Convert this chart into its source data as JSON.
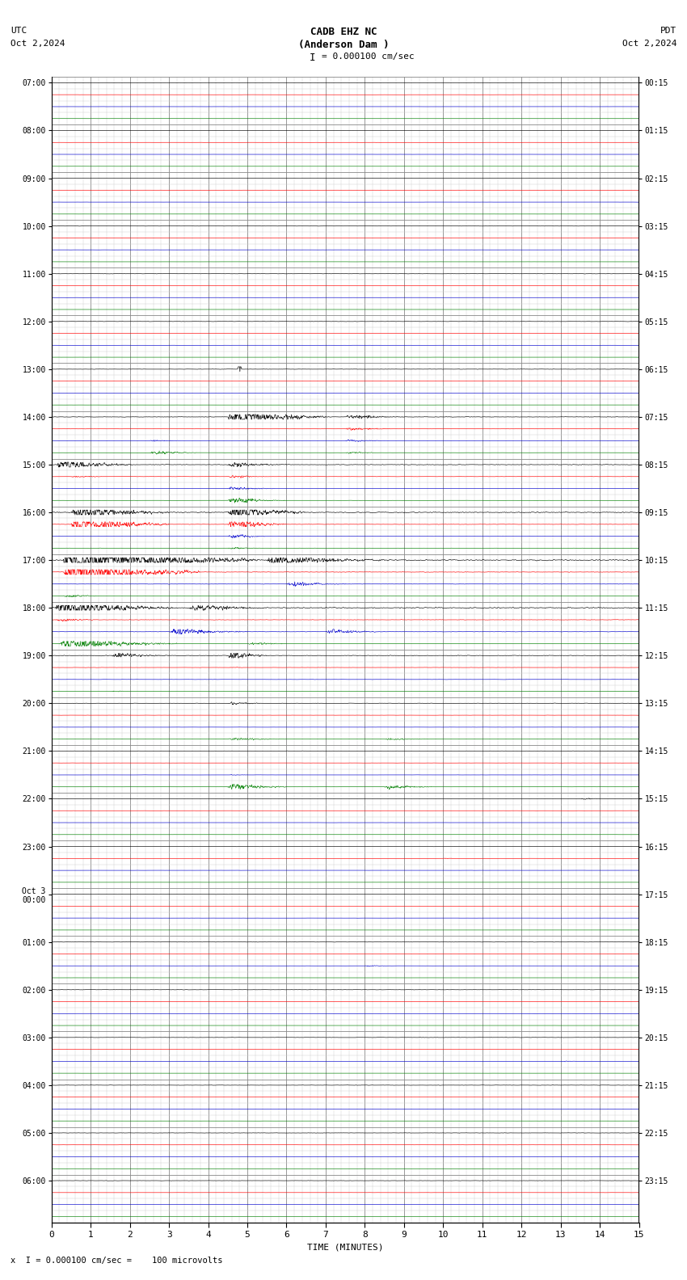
{
  "title_line1": "CADB EHZ NC",
  "title_line2": "(Anderson Dam )",
  "scale_text": "I = 0.000100 cm/sec",
  "utc_label": "UTC",
  "utc_date": "Oct 2,2024",
  "pdt_label": "PDT",
  "pdt_date": "Oct 2,2024",
  "bottom_note": "x  I = 0.000100 cm/sec =    100 microvolts",
  "xlabel": "TIME (MINUTES)",
  "bg_color": "#ffffff",
  "trace_colors": [
    "#000000",
    "#ff0000",
    "#0000cc",
    "#008000"
  ],
  "grid_color_major": "#888888",
  "grid_color_minor": "#cccccc",
  "n_hours": 24,
  "traces_per_hour": 4,
  "minutes_per_row": 15,
  "left_labels_utc": [
    "07:00",
    "08:00",
    "09:00",
    "10:00",
    "11:00",
    "12:00",
    "13:00",
    "14:00",
    "15:00",
    "16:00",
    "17:00",
    "18:00",
    "19:00",
    "20:00",
    "21:00",
    "22:00",
    "23:00",
    "Oct 3\n00:00",
    "01:00",
    "02:00",
    "03:00",
    "04:00",
    "05:00",
    "06:00"
  ],
  "right_labels_pdt": [
    "00:15",
    "01:15",
    "02:15",
    "03:15",
    "04:15",
    "05:15",
    "06:15",
    "07:15",
    "08:15",
    "09:15",
    "10:15",
    "11:15",
    "12:15",
    "13:15",
    "14:15",
    "15:15",
    "16:15",
    "17:15",
    "18:15",
    "19:15",
    "20:15",
    "21:15",
    "22:15",
    "23:15"
  ]
}
